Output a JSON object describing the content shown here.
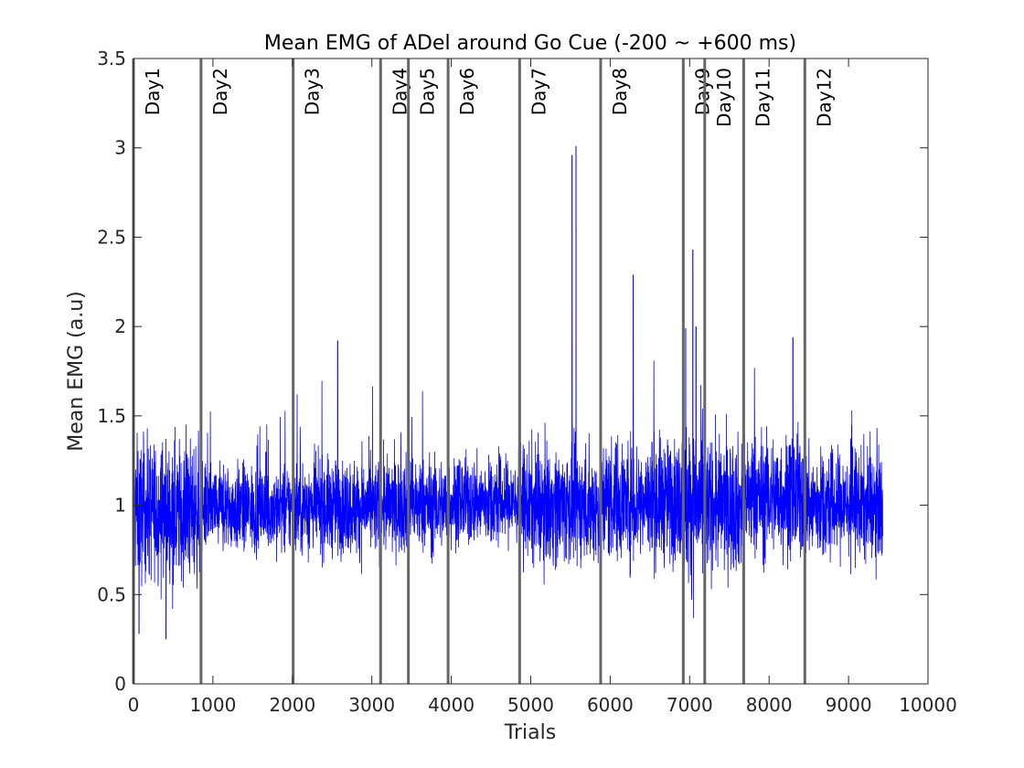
{
  "chart_data": {
    "type": "line",
    "title": "Mean EMG of ADel around Go Cue (-200 ~ +600 ms)",
    "xlabel": "Trials",
    "ylabel": "Mean EMG (a.u)",
    "xlim": [
      0,
      10000
    ],
    "ylim": [
      0,
      3.5
    ],
    "x_ticks": [
      0,
      1000,
      2000,
      3000,
      4000,
      5000,
      6000,
      7000,
      8000,
      9000,
      10000
    ],
    "x_tick_labels": [
      "0",
      "1000",
      "2000",
      "3000",
      "4000",
      "5000",
      "6000",
      "7000",
      "8000",
      "9000",
      "10000"
    ],
    "y_ticks": [
      0,
      0.5,
      1,
      1.5,
      2,
      2.5,
      3,
      3.5
    ],
    "y_tick_labels": [
      "0",
      "0.5",
      "1",
      "1.5",
      "2",
      "2.5",
      "3",
      "3.5"
    ],
    "grid": false,
    "series_color": "#0000ff",
    "boundary_color": "#666666",
    "n_trials": 9430,
    "day_boundaries": [
      {
        "label": "Day1",
        "x": 0
      },
      {
        "label": "Day2",
        "x": 850
      },
      {
        "label": "Day3",
        "x": 2010
      },
      {
        "label": "Day4",
        "x": 3110
      },
      {
        "label": "Day5",
        "x": 3460
      },
      {
        "label": "Day6",
        "x": 3960
      },
      {
        "label": "Day7",
        "x": 4860
      },
      {
        "label": "Day8",
        "x": 5880
      },
      {
        "label": "Day9",
        "x": 6920
      },
      {
        "label": "Day10",
        "x": 7190
      },
      {
        "label": "Day11",
        "x": 7680
      },
      {
        "label": "Day12",
        "x": 8450
      }
    ],
    "segments": [
      {
        "day": "Day1",
        "x_start": 0,
        "x_end": 850,
        "mean": 0.97,
        "spread": 0.19
      },
      {
        "day": "Day2",
        "x_start": 850,
        "x_end": 2010,
        "mean": 0.98,
        "spread": 0.12
      },
      {
        "day": "Day3",
        "x_start": 2010,
        "x_end": 3110,
        "mean": 0.99,
        "spread": 0.13
      },
      {
        "day": "Day4",
        "x_start": 3110,
        "x_end": 3460,
        "mean": 1.0,
        "spread": 0.13
      },
      {
        "day": "Day5",
        "x_start": 3460,
        "x_end": 3960,
        "mean": 1.0,
        "spread": 0.13
      },
      {
        "day": "Day6",
        "x_start": 3960,
        "x_end": 4860,
        "mean": 1.02,
        "spread": 0.12
      },
      {
        "day": "Day7",
        "x_start": 4860,
        "x_end": 5880,
        "mean": 1.0,
        "spread": 0.16
      },
      {
        "day": "Day8",
        "x_start": 5880,
        "x_end": 6920,
        "mean": 1.03,
        "spread": 0.17
      },
      {
        "day": "Day9",
        "x_start": 6920,
        "x_end": 7190,
        "mean": 1.0,
        "spread": 0.22
      },
      {
        "day": "Day10",
        "x_start": 7190,
        "x_end": 7680,
        "mean": 1.0,
        "spread": 0.18
      },
      {
        "day": "Day11",
        "x_start": 7680,
        "x_end": 8450,
        "mean": 1.05,
        "spread": 0.17
      },
      {
        "day": "Day12",
        "x_start": 8450,
        "x_end": 9430,
        "mean": 1.0,
        "spread": 0.15
      }
    ],
    "peaks": [
      {
        "x": 5520,
        "y": 2.96
      },
      {
        "x": 5570,
        "y": 3.01
      },
      {
        "x": 6290,
        "y": 2.29
      },
      {
        "x": 7040,
        "y": 2.43
      },
      {
        "x": 2570,
        "y": 1.92
      },
      {
        "x": 8300,
        "y": 1.94
      },
      {
        "x": 6950,
        "y": 1.99
      },
      {
        "x": 7080,
        "y": 2.0
      },
      {
        "x": 410,
        "y": 0.25
      },
      {
        "x": 70,
        "y": 0.28
      }
    ]
  }
}
